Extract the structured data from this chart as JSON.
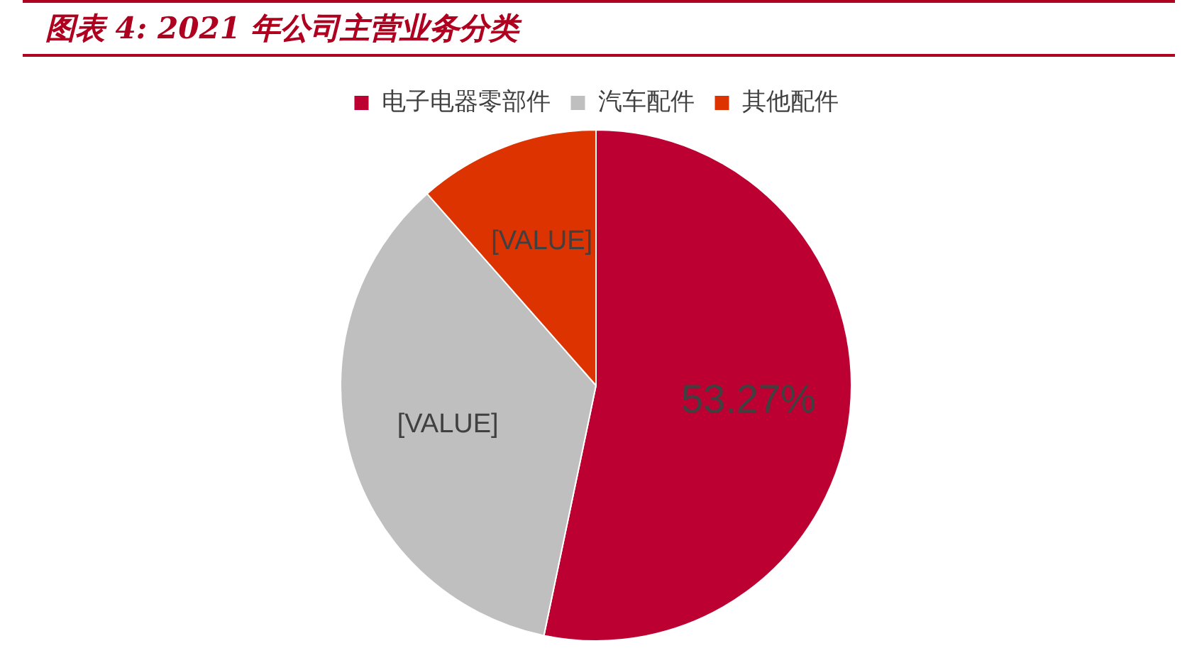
{
  "chart_data": {
    "type": "pie",
    "title": "图表 4: 2021 年公司主营业务分类",
    "categories": [
      "电子电器零部件",
      "汽车配件",
      "其他配件"
    ],
    "values": [
      53.27,
      35.23,
      11.5
    ],
    "colors": [
      "#bc0031",
      "#bfbfbf",
      "#dd3300"
    ],
    "value_labels": [
      "53.27%",
      "[VALUE]",
      "[VALUE]"
    ],
    "legend": "top"
  }
}
